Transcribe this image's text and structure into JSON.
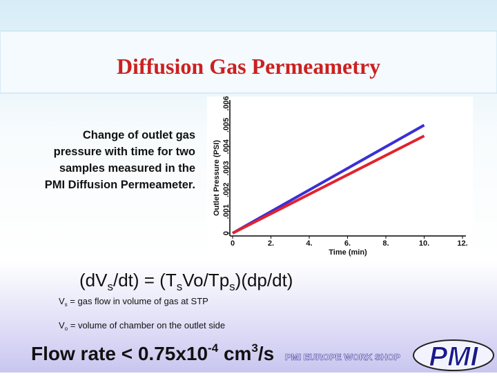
{
  "title": "Diffusion Gas Permeametry",
  "caption": [
    "Change of outlet gas",
    "pressure with time for two",
    "samples measured in the",
    "PMI Diffusion Permeameter."
  ],
  "chart_data": {
    "type": "line",
    "x_label": "Time (min)",
    "y_label": "Outlet Pressure (PSI)",
    "x": [
      0,
      10
    ],
    "series": [
      {
        "color": "#3b2fd6",
        "values": [
          0,
          0.005
        ]
      },
      {
        "color": "#e0232e",
        "values": [
          0,
          0.0045
        ]
      }
    ],
    "xlim": [
      0,
      12
    ],
    "xticks": [
      0,
      {
        "value": 2,
        "label": "2."
      },
      {
        "value": 4,
        "label": "4."
      },
      {
        "value": 6,
        "label": "6."
      },
      {
        "value": 8,
        "label": "8."
      },
      {
        "value": 10,
        "label": "10."
      },
      {
        "value": 12,
        "label": "12."
      }
    ],
    "ylim": [
      0,
      0.006
    ],
    "yticks": [
      0,
      {
        "value": 0.001,
        "label": ".001"
      },
      {
        "value": 0.002,
        "label": ".002"
      },
      {
        "value": 0.003,
        "label": ".003"
      },
      {
        "value": 0.004,
        "label": ".004"
      },
      {
        "value": 0.005,
        "label": ".005"
      },
      {
        "value": 0.006,
        "label": ".006"
      }
    ]
  },
  "formula": [
    "(dV",
    "s",
    "/dt) = (T",
    "s",
    "Vo/Tp",
    "s",
    ")(dp/dt)"
  ],
  "notes": [
    [
      "V",
      "s",
      " = gas flow in volume of gas at STP"
    ],
    [
      "V",
      "o",
      " = volume of chamber on the outlet side"
    ]
  ],
  "flow_rate": [
    "Flow rate < 0.75x10",
    "-4",
    " cm",
    "3",
    "/s"
  ],
  "footer": "PMI EUROPE WORK SHOP",
  "logo": "PMI"
}
